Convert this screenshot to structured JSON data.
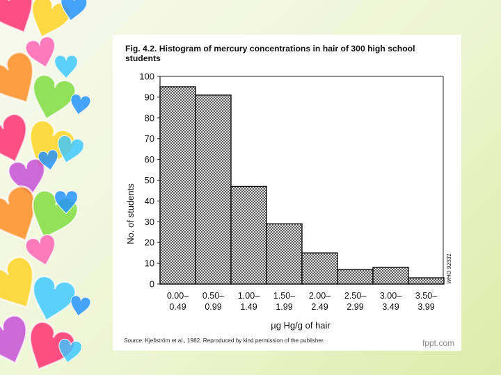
{
  "slide": {
    "brand": "fppt.com",
    "heart_colors": [
      "#ff2a6d",
      "#ffd21f",
      "#1e90ff",
      "#39c7ff",
      "#ff8a1f",
      "#7ddc3a",
      "#c34bd8",
      "#ff5fb3"
    ]
  },
  "figure": {
    "caption_line1": "Fig. 4.2. Histogram of mercury concentrations in hair of 300 high school",
    "caption_line2": "students",
    "source_italic": "Source:",
    "source_text": " Kjellström et al., 1982. Reproduced by kind permission of the publisher.",
    "side_code": "WHO 92331"
  },
  "chart_data": {
    "type": "bar",
    "categories": [
      [
        "0.00–",
        "0.49"
      ],
      [
        "0.50–",
        "0.99"
      ],
      [
        "1.00–",
        "1.49"
      ],
      [
        "1.50–",
        "1.99"
      ],
      [
        "2.00–",
        "2.49"
      ],
      [
        "2.50–",
        "2.99"
      ],
      [
        "3.00–",
        "3.49"
      ],
      [
        "3.50–",
        "3.99"
      ]
    ],
    "values": [
      95,
      91,
      47,
      29,
      15,
      7,
      8,
      3
    ],
    "xlabel": "µg Hg/g of hair",
    "ylabel": "No. of students",
    "ylim": [
      0,
      100
    ],
    "yticks": [
      0,
      10,
      20,
      30,
      40,
      50,
      60,
      70,
      80,
      90,
      100
    ],
    "grid": false,
    "bar_pattern": "crosshatch"
  }
}
